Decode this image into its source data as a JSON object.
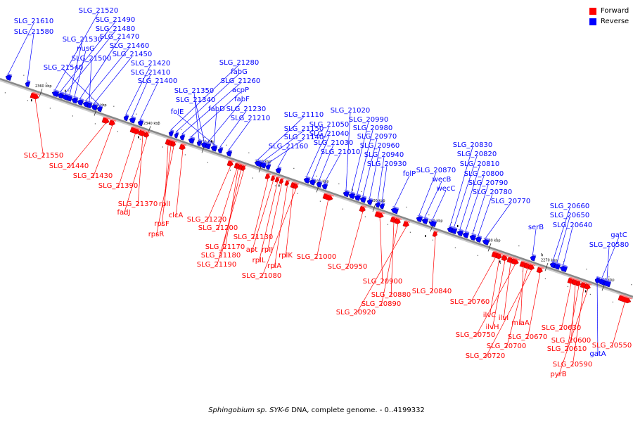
{
  "legend": {
    "forward": {
      "label": "Forward",
      "color": "#ff0000"
    },
    "reverse": {
      "label": "Reverse",
      "color": "#0000ff"
    }
  },
  "caption": {
    "organism": "Sphingobium sp. SYK-6",
    "rest": " DNA, complete genome. - 0..4199332"
  },
  "genome": {
    "axis_color": "#888888",
    "ticks": [
      "2360 kbp",
      "2350 kbp",
      "2340 kbp",
      "2330 kbp",
      "2320 kbp",
      "2310 kbp",
      "2300 kbp",
      "2290 kbp",
      "2280 kbp",
      "2270 kbp",
      "2260 kbp"
    ],
    "reverse_genes": [
      "SLG_21610",
      "SLG_21580",
      "SLG_21520",
      "SLG_21490",
      "SLG_21480",
      "SLG_21530",
      "nusG",
      "SLG_21470",
      "SLG_21460",
      "SLG_21500",
      "SLG_21450",
      "SLG_21540",
      "SLG_21420",
      "SLG_21410",
      "SLG_21400",
      "SLG_21280",
      "fabG",
      "SLG_21260",
      "acpP",
      "SLG_21350",
      "SLG_21340",
      "fabF",
      "folE",
      "fabD",
      "SLG_21230",
      "SLG_21210",
      "SLG_21110",
      "SLG_21150",
      "SLG_21140",
      "SLG_21160",
      "SLG_21050",
      "SLG_21040",
      "SLG_21030",
      "SLG_21010",
      "SLG_21020",
      "SLG_20990",
      "SLG_20980",
      "SLG_20970",
      "SLG_20960",
      "SLG_20940",
      "SLG_20930",
      "folP",
      "SLG_20870",
      "wecB",
      "wecC",
      "SLG_20830",
      "SLG_20820",
      "SLG_20810",
      "SLG_20800",
      "SLG_20790",
      "SLG_20780",
      "SLG_20770",
      "serB",
      "SLG_20660",
      "SLG_20650",
      "SLG_20640",
      "gatC",
      "SLG_20580",
      "gatA"
    ],
    "forward_genes": [
      "SLG_21550",
      "SLG_21440",
      "SLG_21430",
      "SLG_21390",
      "SLG_21370",
      "fadJ",
      "rplI",
      "rpsF",
      "rpsR",
      "clcA",
      "SLG_21220",
      "SLG_21200",
      "SLG_21170",
      "SLG_21180",
      "SLG_21190",
      "SLG_21130",
      "apt",
      "rplL",
      "rpIJ",
      "rplA",
      "rplK",
      "SLG_21080",
      "SLG_21000",
      "SLG_20950",
      "SLG_20900",
      "SLG_20880",
      "SLG_20890",
      "SLG_20920",
      "SLG_20840",
      "SLG_20760",
      "ilvC",
      "ilvH",
      "ilvI",
      "SLG_20750",
      "miaA",
      "SLG_20700",
      "SLG_20720",
      "SLG_20670",
      "SLG_20630",
      "SLG_20600",
      "SLG_20610",
      "SLG_20590",
      "pyrB",
      "SLG_20550"
    ]
  }
}
